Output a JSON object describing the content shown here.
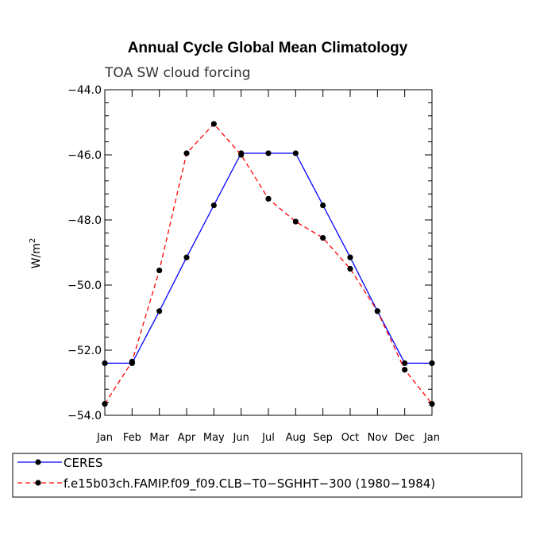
{
  "chart_data": {
    "type": "line",
    "title": "Annual Cycle Global Mean Climatology",
    "subtitle": "TOA SW cloud forcing",
    "ylabel": "W/m",
    "ylabel_superscript": "2",
    "xlabel": "",
    "categories": [
      "Jan",
      "Feb",
      "Mar",
      "Apr",
      "May",
      "Jun",
      "Jul",
      "Aug",
      "Sep",
      "Oct",
      "Nov",
      "Dec",
      "Jan"
    ],
    "ylim": [
      -54.0,
      -44.0
    ],
    "yticks": [
      -44.0,
      -46.0,
      -48.0,
      -50.0,
      -52.0,
      -54.0
    ],
    "ytick_labels": [
      "−44.0",
      "−46.0",
      "−48.0",
      "−50.0",
      "−52.0",
      "−54.0"
    ],
    "grid": false,
    "legend_position": "bottom",
    "series": [
      {
        "name": "CERES",
        "color": "#0000ff",
        "dash": "solid",
        "values": [
          -52.4,
          -52.4,
          -50.8,
          -49.15,
          -47.55,
          -45.95,
          -45.95,
          -45.95,
          -47.55,
          -49.15,
          -50.8,
          -52.4,
          -52.4
        ]
      },
      {
        "name": "f.e15b03ch.FAMIP.f09_f09.CLB−T0−SGHHT−300 (1980−1984)",
        "color": "#ff0000",
        "dash": "dashed",
        "values": [
          -53.65,
          -52.35,
          -49.55,
          -45.95,
          -45.05,
          -46.0,
          -47.35,
          -48.05,
          -48.55,
          -49.5,
          -50.8,
          -52.6,
          -53.65
        ]
      }
    ]
  }
}
